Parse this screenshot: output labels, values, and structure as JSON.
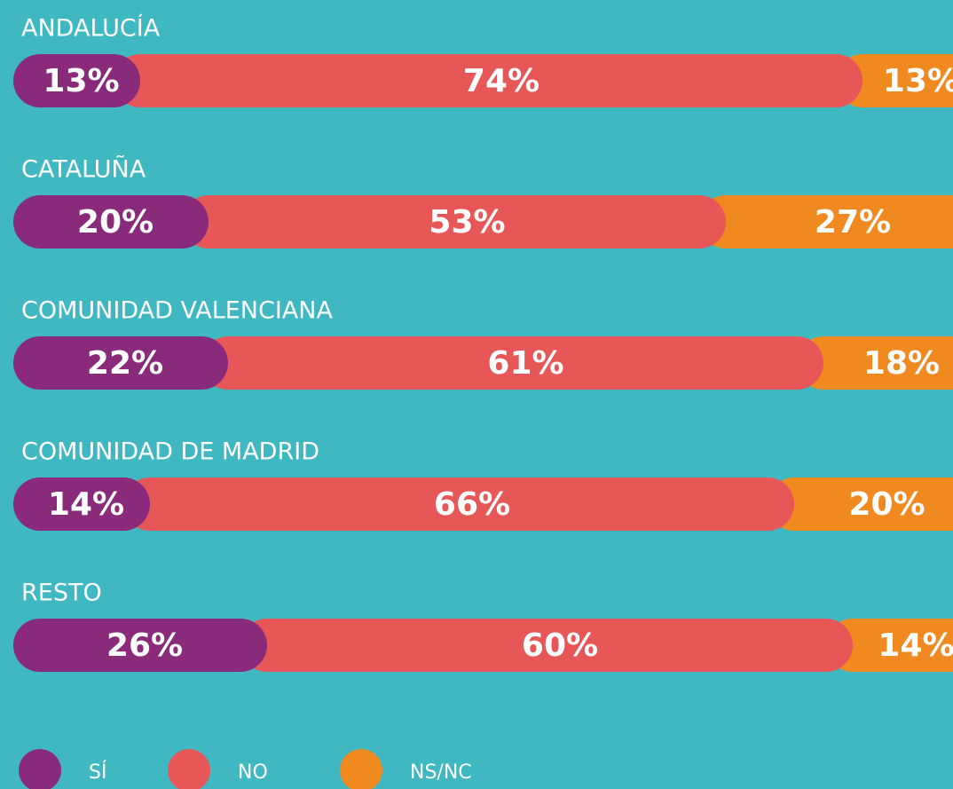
{
  "chart_data": {
    "type": "bar",
    "orientation": "horizontal",
    "stacked": true,
    "categories": [
      "ANDALUCÍA",
      "CATALUÑA",
      "COMUNIDAD VALENCIANA",
      "COMUNIDAD DE MADRID",
      "RESTO"
    ],
    "series": [
      {
        "name": "SÍ",
        "color": "#8a2a7a",
        "values": [
          13,
          20,
          22,
          14,
          26
        ],
        "value_labels": [
          "13%",
          "20%",
          "22%",
          "14%",
          "26%"
        ]
      },
      {
        "name": "NO",
        "color": "#e85757",
        "values": [
          74,
          53,
          61,
          66,
          60
        ],
        "value_labels": [
          "74%",
          "53%",
          "61%",
          "66%",
          "60%"
        ]
      },
      {
        "name": "NS/NC",
        "color": "#f0891f",
        "values": [
          13,
          27,
          18,
          20,
          14
        ],
        "value_labels": [
          "13%",
          "27%",
          "18%",
          "20%",
          "14%"
        ]
      }
    ]
  }
}
